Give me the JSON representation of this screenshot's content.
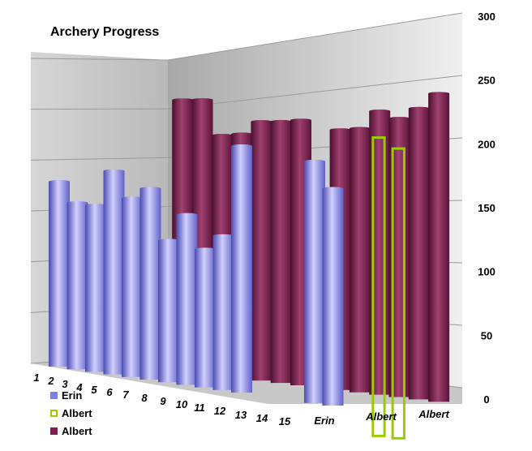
{
  "chart_data": {
    "type": "bar",
    "title": "Archery Progress",
    "y_axis": {
      "min": 0,
      "max": 300,
      "ticks": [
        "0",
        "50",
        "100",
        "150",
        "200",
        "250",
        "300"
      ],
      "grid": true
    },
    "categories": [
      "1",
      "2",
      "3",
      "4",
      "5",
      "6",
      "7",
      "8",
      "9",
      "10",
      "11",
      "12",
      "13",
      "14",
      "15",
      "Erin",
      "Albert",
      "Albert"
    ],
    "series": [
      {
        "name": "Erin",
        "color": "#8080e0",
        "values": [
          150,
          135,
          135,
          165,
          145,
          155,
          115,
          138,
          112,
          125,
          200,
          null,
          null,
          null,
          196,
          176,
          null,
          null
        ]
      },
      {
        "name": "Albert",
        "color": "#99cc00",
        "style": "outline",
        "values": [
          null,
          null,
          null,
          null,
          null,
          null,
          null,
          null,
          null,
          null,
          null,
          null,
          null,
          null,
          null,
          null,
          242,
          235
        ]
      },
      {
        "name": "Albert",
        "color": "#7a1f4f",
        "values": [
          null,
          null,
          null,
          null,
          220,
          222,
          195,
          198,
          210,
          212,
          215,
          160,
          211,
          214,
          230,
          226,
          236,
          250
        ]
      }
    ],
    "legend": {
      "position": "bottom-left",
      "entries": [
        {
          "label": "Erin",
          "color": "#8080e0",
          "style": "fill"
        },
        {
          "label": "Albert",
          "color": "#99cc00",
          "style": "outline"
        },
        {
          "label": "Albert",
          "color": "#7a1f4f",
          "style": "fill"
        }
      ]
    }
  }
}
